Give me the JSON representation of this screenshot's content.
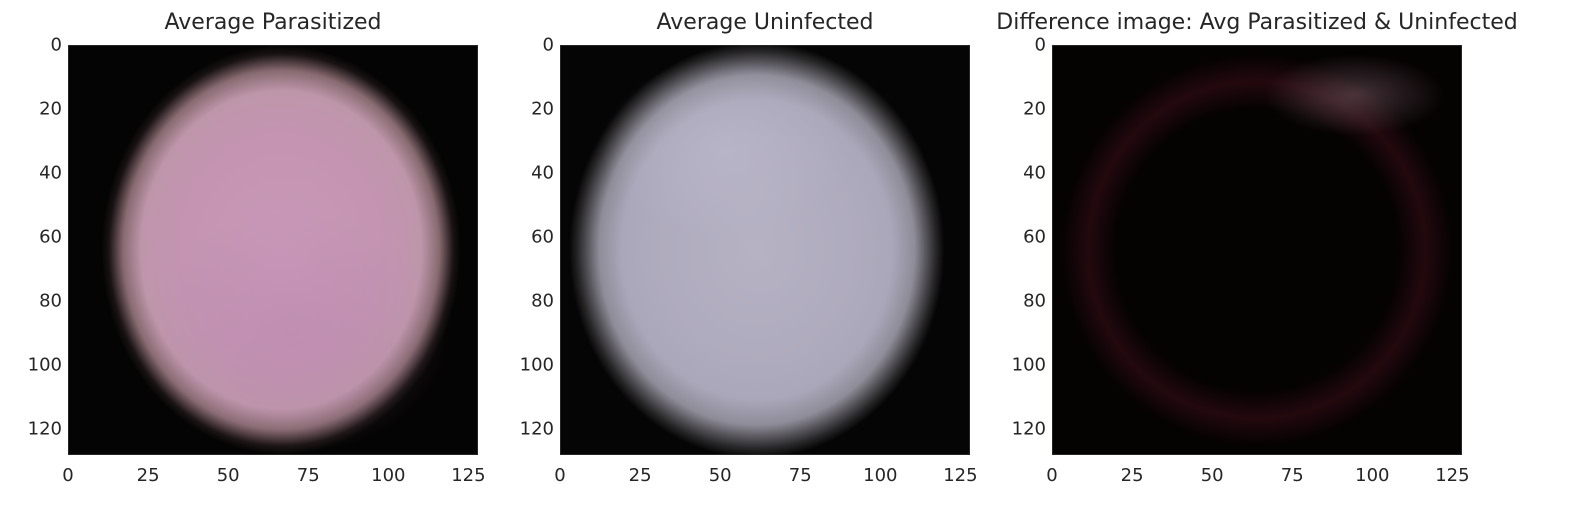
{
  "chart_data": [
    {
      "type": "image",
      "title": "Average Parasitized",
      "xlim": [
        0,
        128
      ],
      "ylim": [
        128,
        0
      ],
      "xticks": [
        "0",
        "25",
        "50",
        "75",
        "100",
        "125"
      ],
      "yticks": [
        "0",
        "20",
        "40",
        "60",
        "80",
        "100",
        "120"
      ],
      "dominant_color": "#c498b4",
      "background_color": "#050404"
    },
    {
      "type": "image",
      "title": "Average Uninfected",
      "xlim": [
        0,
        128
      ],
      "ylim": [
        128,
        0
      ],
      "xticks": [
        "0",
        "25",
        "50",
        "75",
        "100",
        "125"
      ],
      "yticks": [
        "0",
        "20",
        "40",
        "60",
        "80",
        "100",
        "120"
      ],
      "dominant_color": "#afabbe",
      "background_color": "#050505"
    },
    {
      "type": "image",
      "title": "Difference image: Avg Parasitized & Uninfected",
      "xlim": [
        0,
        128
      ],
      "ylim": [
        128,
        0
      ],
      "xticks": [
        "0",
        "25",
        "50",
        "75",
        "100",
        "125"
      ],
      "yticks": [
        "0",
        "20",
        "40",
        "60",
        "80",
        "100",
        "120"
      ],
      "dominant_color": "#050202",
      "background_color": "#050202"
    }
  ]
}
